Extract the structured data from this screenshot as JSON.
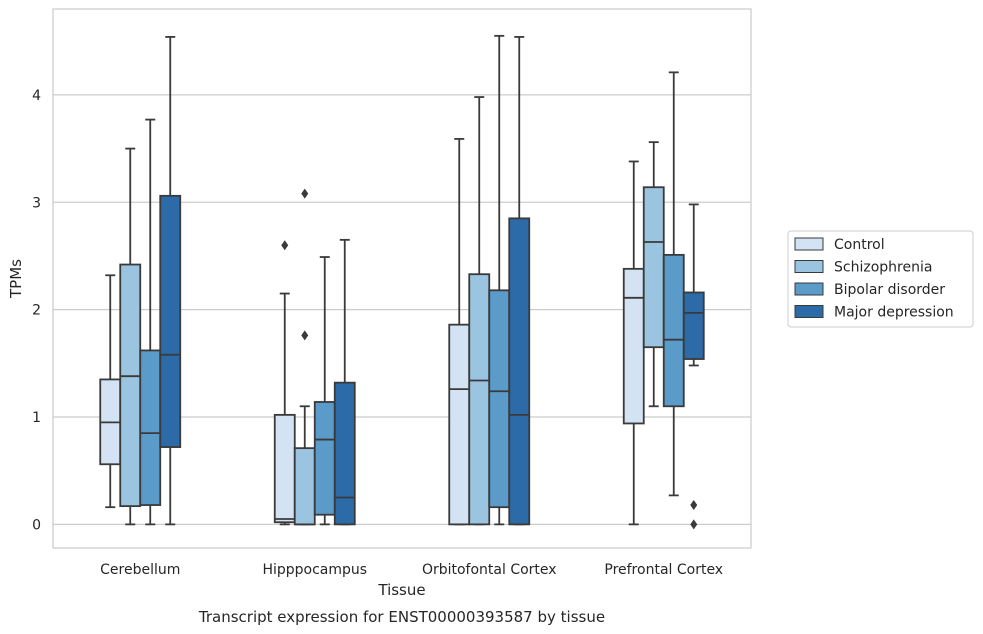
{
  "chart_data": {
    "type": "box",
    "title": "",
    "xlabel": "Tissue",
    "ylabel": "TPMs",
    "caption": "Transcript expression for ENST00000393587 by tissue",
    "categories": [
      "Cerebellum",
      "Hipppocampus",
      "Orbitofontal Cortex",
      "Prefrontal Cortex"
    ],
    "yticks": [
      0,
      1,
      2,
      3,
      4
    ],
    "ylim": [
      -0.22,
      4.8
    ],
    "grid": "y",
    "legend_position": "right",
    "series": [
      {
        "name": "Control",
        "color": "#d3e3f3",
        "boxes": [
          {
            "min": 0.16,
            "q1": 0.56,
            "median": 0.95,
            "q3": 1.35,
            "max": 2.32,
            "outliers": []
          },
          {
            "min": 0.0,
            "q1": 0.02,
            "median": 0.05,
            "q3": 1.02,
            "max": 2.15,
            "outliers": [
              2.6
            ]
          },
          {
            "min": 0.0,
            "q1": 0.0,
            "median": 1.26,
            "q3": 1.86,
            "max": 3.59,
            "outliers": []
          },
          {
            "min": 0.0,
            "q1": 0.94,
            "median": 2.11,
            "q3": 2.38,
            "max": 3.38,
            "outliers": []
          }
        ]
      },
      {
        "name": "Schizophrenia",
        "color": "#9ac4df",
        "boxes": [
          {
            "min": 0.0,
            "q1": 0.17,
            "median": 1.38,
            "q3": 2.42,
            "max": 3.5,
            "outliers": []
          },
          {
            "min": 0.0,
            "q1": 0.0,
            "median": 0.0,
            "q3": 0.71,
            "max": 1.1,
            "outliers": [
              1.76,
              3.08
            ]
          },
          {
            "min": 0.0,
            "q1": 0.0,
            "median": 1.34,
            "q3": 2.33,
            "max": 3.98,
            "outliers": []
          },
          {
            "min": 1.1,
            "q1": 1.65,
            "median": 2.63,
            "q3": 3.14,
            "max": 3.56,
            "outliers": []
          }
        ]
      },
      {
        "name": "Bipolar disorder",
        "color": "#5b9bc9",
        "boxes": [
          {
            "min": 0.0,
            "q1": 0.18,
            "median": 0.85,
            "q3": 1.62,
            "max": 3.77,
            "outliers": []
          },
          {
            "min": 0.0,
            "q1": 0.09,
            "median": 0.79,
            "q3": 1.14,
            "max": 2.49,
            "outliers": []
          },
          {
            "min": 0.0,
            "q1": 0.16,
            "median": 1.24,
            "q3": 2.18,
            "max": 4.55,
            "outliers": []
          },
          {
            "min": 0.27,
            "q1": 1.1,
            "median": 1.72,
            "q3": 2.51,
            "max": 4.21,
            "outliers": []
          }
        ]
      },
      {
        "name": "Major depression",
        "color": "#2c6aa8",
        "boxes": [
          {
            "min": 0.0,
            "q1": 0.72,
            "median": 1.58,
            "q3": 3.06,
            "max": 4.54,
            "outliers": []
          },
          {
            "min": 0.0,
            "q1": 0.0,
            "median": 0.25,
            "q3": 1.32,
            "max": 2.65,
            "outliers": []
          },
          {
            "min": 0.0,
            "q1": 0.0,
            "median": 1.02,
            "q3": 2.85,
            "max": 4.54,
            "outliers": []
          },
          {
            "min": 1.48,
            "q1": 1.54,
            "median": 1.97,
            "q3": 2.16,
            "max": 2.98,
            "outliers": [
              0.0,
              0.18
            ]
          }
        ]
      }
    ]
  }
}
